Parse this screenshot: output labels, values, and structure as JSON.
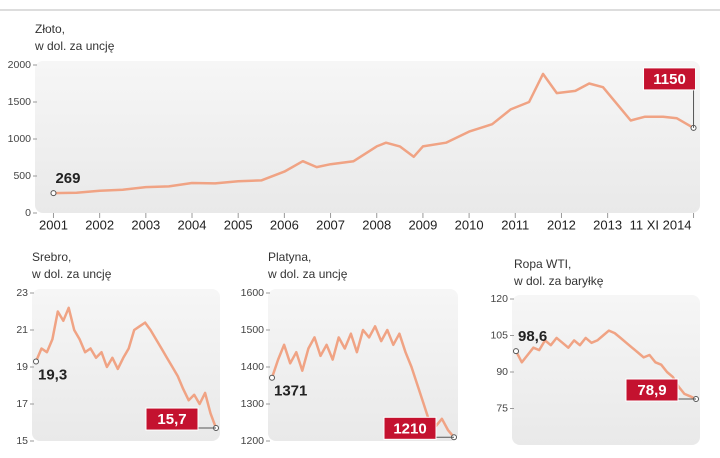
{
  "chart_data": [
    {
      "type": "line",
      "title": "Złoto,",
      "subtitle": "w dol. za uncję",
      "color": "#f0a384",
      "x": [
        2001,
        2001.5,
        2002,
        2002.5,
        2003,
        2003.5,
        2004,
        2004.5,
        2005,
        2005.5,
        2006,
        2006.4,
        2006.7,
        2007,
        2007.5,
        2008,
        2008.2,
        2008.5,
        2008.8,
        2009,
        2009.5,
        2010,
        2010.5,
        2010.9,
        2011.3,
        2011.6,
        2011.9,
        2012.3,
        2012.6,
        2012.9,
        2013.3,
        2013.5,
        2013.8,
        2014.2,
        2014.5,
        2014.86
      ],
      "values": [
        269,
        275,
        300,
        315,
        350,
        360,
        405,
        400,
        430,
        440,
        560,
        700,
        620,
        660,
        700,
        900,
        950,
        900,
        760,
        900,
        950,
        1100,
        1200,
        1400,
        1500,
        1880,
        1620,
        1650,
        1750,
        1700,
        1400,
        1250,
        1300,
        1300,
        1280,
        1150
      ],
      "start_label": "269",
      "end_label": "1150",
      "xlim": [
        2000.6,
        2015
      ],
      "ylim": [
        0,
        2000
      ],
      "yticks": [
        0,
        500,
        1000,
        1500,
        2000
      ],
      "xticks": [
        2001,
        2002,
        2003,
        2004,
        2005,
        2006,
        2007,
        2008,
        2009,
        2010,
        2011,
        2012,
        2013,
        {
          "value": 2014.86,
          "label": "11 XI 2014"
        }
      ]
    },
    {
      "type": "line",
      "title": "Srebro,",
      "subtitle": "w dol. za uncję",
      "color": "#f0a384",
      "values": [
        19.3,
        20.0,
        19.8,
        20.5,
        22.0,
        21.5,
        22.2,
        21.0,
        20.5,
        19.8,
        20.0,
        19.5,
        19.8,
        19.0,
        19.5,
        18.9,
        19.5,
        20.0,
        21.0,
        21.2,
        21.4,
        21.0,
        20.5,
        20.0,
        19.5,
        19.0,
        18.5,
        17.8,
        17.2,
        17.5,
        17.0,
        17.6,
        16.5,
        15.7
      ],
      "start_label": "19,3",
      "end_label": "15,7",
      "ylim": [
        15,
        23
      ],
      "yticks": [
        15,
        17,
        19,
        21,
        23
      ]
    },
    {
      "type": "line",
      "title": "Platyna,",
      "subtitle": "w dol. za uncję",
      "color": "#f0a384",
      "values": [
        1371,
        1420,
        1460,
        1410,
        1440,
        1390,
        1450,
        1480,
        1430,
        1460,
        1420,
        1480,
        1450,
        1490,
        1440,
        1500,
        1480,
        1510,
        1470,
        1500,
        1460,
        1490,
        1440,
        1400,
        1350,
        1300,
        1250,
        1240,
        1260,
        1230,
        1210
      ],
      "start_label": "1371",
      "end_label": "1210",
      "ylim": [
        1200,
        1600
      ],
      "yticks": [
        1200,
        1300,
        1400,
        1500,
        1600
      ]
    },
    {
      "type": "line",
      "title": "Ropa WTI,",
      "subtitle": "w dol. za baryłkę",
      "color": "#f0a384",
      "values": [
        98.6,
        94,
        97,
        100,
        99,
        103,
        101,
        104,
        102,
        100,
        103,
        101,
        104,
        102,
        103,
        105,
        107,
        106,
        104,
        102,
        100,
        98,
        96,
        97,
        94,
        93,
        90,
        88,
        84,
        81,
        80,
        78.9
      ],
      "start_label": "98,6",
      "end_label": "78,9",
      "ylim": [
        60,
        120
      ],
      "yticks": [
        75,
        90,
        105,
        120
      ]
    }
  ]
}
